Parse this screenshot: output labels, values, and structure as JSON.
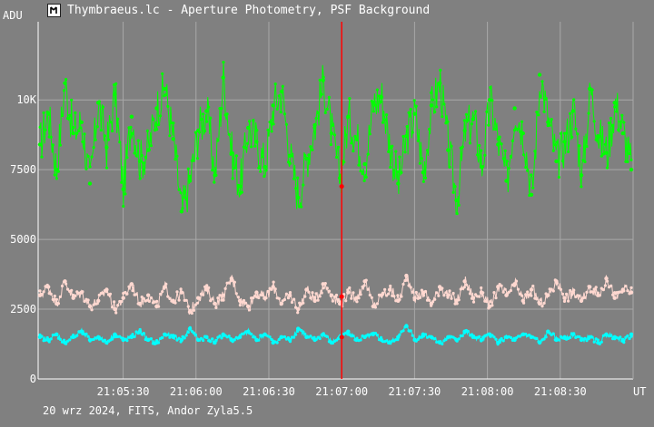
{
  "window": {
    "title": "Thymbraeus.lc - Aperture Photometry, PSF Background",
    "footer": "20 wrz 2024, FITS, Andor Zyla5.5"
  },
  "chart_data": {
    "type": "scatter",
    "title": "Thymbraeus.lc - Aperture Photometry, PSF Background",
    "ylabel": "ADU",
    "xlabel": "UT",
    "x_start": "21:04:55",
    "x_end": "21:09:00",
    "ylim": [
      0,
      12800
    ],
    "yticks": [
      0,
      2500,
      5000,
      7500,
      10000
    ],
    "ytick_labels": [
      "0",
      "2500",
      "5000",
      "7500",
      "10K"
    ],
    "xticks": [
      "21:05:30",
      "21:06:00",
      "21:06:30",
      "21:07:00",
      "21:07:30",
      "21:08:00",
      "21:08:30"
    ],
    "grid": true,
    "cursor_time": "21:07:00",
    "colors": {
      "background": "#808080",
      "grid": "#a8a8a8",
      "axis": "#ffffff",
      "cursor": "#ff0000",
      "marker": "#ff0000"
    },
    "series": [
      {
        "color": "#00ff00",
        "values": [
          8400,
          9500,
          7500,
          10600,
          8800,
          9200,
          7000,
          9900,
          8300,
          10200,
          6800,
          9400,
          7800,
          8200,
          9700,
          10400,
          8600,
          6000,
          7100,
          8900,
          9600,
          7300,
          10800,
          8100,
          6900,
          9000,
          8500,
          7600,
          9800,
          10300,
          8000,
          6500,
          7900,
          9100,
          10700,
          8800,
          7200,
          9400,
          8600,
          7700,
          9900,
          10100,
          8300,
          7000,
          8700,
          9500,
          7400,
          9800,
          10600,
          8200,
          6400,
          8900,
          9300,
          7600,
          10000,
          8400,
          7100,
          9700,
          8800,
          6600,
          10900,
          9200,
          7800,
          8500,
          9600,
          7300,
          10400,
          8700,
          8100,
          9900,
          8800,
          7500
        ],
        "mean": 8700
      },
      {
        "color": "#ffd8d0",
        "values": [
          3000,
          3300,
          2700,
          3500,
          2900,
          3100,
          2600,
          2800,
          3200,
          2500,
          2900,
          3400,
          2700,
          3000,
          2600,
          3300,
          2800,
          3100,
          2400,
          2900,
          3200,
          2700,
          3000,
          3600,
          2800,
          2600,
          3100,
          2900,
          3300,
          2700,
          3000,
          2500,
          3200,
          2800,
          3400,
          3000,
          2700,
          3100,
          2900,
          3500,
          2600,
          3000,
          3200,
          2800,
          3700,
          2900,
          3100,
          2700,
          3300,
          3000,
          2800,
          3500,
          2900,
          3100,
          2600,
          3300,
          3000,
          3400,
          2800,
          3200,
          2700,
          3000,
          3500,
          2900,
          3100,
          2800,
          3300,
          3000,
          3600,
          2900,
          3200,
          3100
        ],
        "mean": 3000
      },
      {
        "color": "#00ffff",
        "values": [
          1500,
          1400,
          1600,
          1300,
          1500,
          1700,
          1400,
          1500,
          1300,
          1600,
          1400,
          1500,
          1700,
          1400,
          1300,
          1600,
          1500,
          1400,
          1800,
          1400,
          1500,
          1300,
          1600,
          1400,
          1500,
          1700,
          1400,
          1600,
          1300,
          1500,
          1400,
          1800,
          1500,
          1400,
          1600,
          1300,
          1500,
          1700,
          1400,
          1500,
          1600,
          1400,
          1300,
          1500,
          1900,
          1400,
          1600,
          1500,
          1300,
          1500,
          1400,
          1700,
          1500,
          1400,
          1600,
          1300,
          1500,
          1400,
          1600,
          1500,
          1300,
          1700,
          1400,
          1500,
          1600,
          1400,
          1500,
          1300,
          1600,
          1500,
          1400,
          1600
        ],
        "mean": 1480
      }
    ],
    "cursor_markers": [
      {
        "series": 0,
        "y": 6900
      },
      {
        "series": 1,
        "y": 2950
      },
      {
        "series": 2,
        "y": 1500
      }
    ]
  }
}
